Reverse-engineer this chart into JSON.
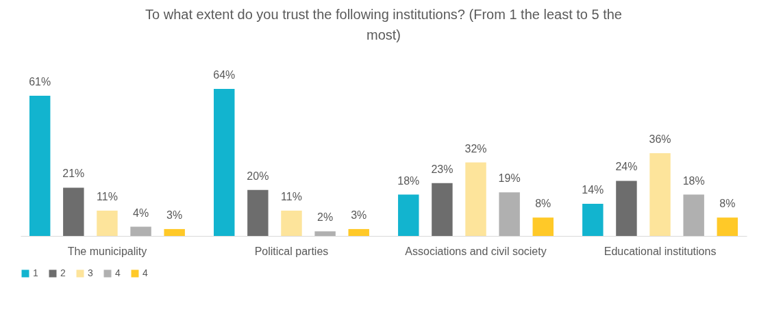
{
  "chart_data": {
    "type": "bar",
    "title": "To what extent do you trust the following institutions? (From 1 the least to 5 the most)",
    "categories": [
      "The municipality",
      "Political parties",
      "Associations and civil society",
      "Educational institutions"
    ],
    "series": [
      {
        "name": "1",
        "color": "#12b4cf",
        "values": [
          61,
          64,
          18,
          14
        ],
        "value_labels": [
          "61%",
          "64%",
          "18%",
          "14%"
        ]
      },
      {
        "name": "2",
        "color": "#6d6d6d",
        "values": [
          21,
          20,
          23,
          24
        ],
        "value_labels": [
          "21%",
          "20%",
          "23%",
          "24%"
        ]
      },
      {
        "name": "3",
        "color": "#fde49b",
        "values": [
          11,
          11,
          32,
          36
        ],
        "value_labels": [
          "11%",
          "11%",
          "32%",
          "36%"
        ]
      },
      {
        "name": "4",
        "color": "#b0b0b0",
        "values": [
          4,
          2,
          19,
          18
        ],
        "value_labels": [
          "4%",
          "2%",
          "19%",
          "18%"
        ]
      },
      {
        "name": "4",
        "color": "#ffc928",
        "values": [
          3,
          3,
          8,
          8
        ],
        "value_labels": [
          "3%",
          "3%",
          "8%",
          "8%"
        ]
      }
    ],
    "legend": "bottom",
    "grid": false
  }
}
